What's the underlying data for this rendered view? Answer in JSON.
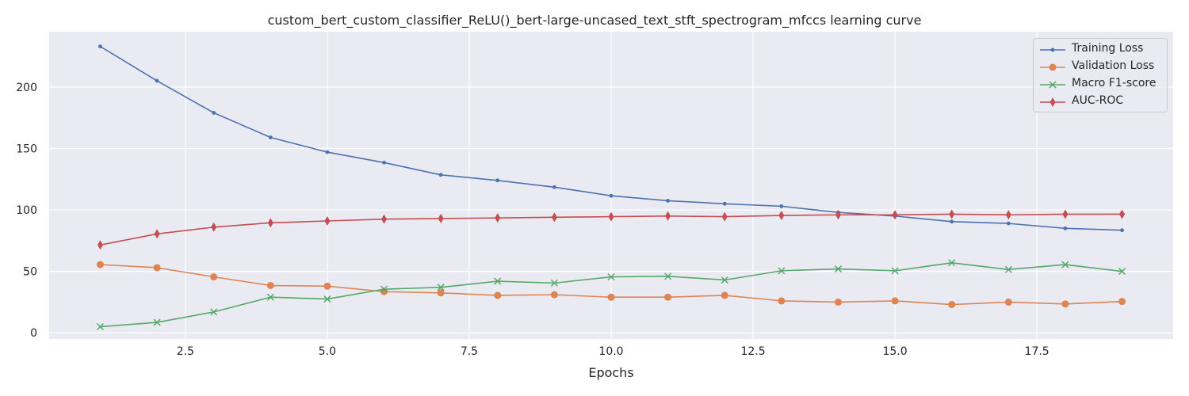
{
  "chart_data": {
    "type": "line",
    "title": "custom_bert_custom_classifier_ReLU()_bert-large-uncased_text_stft_spectrogram_mfccs learning curve",
    "xlabel": "Epochs",
    "ylabel": "",
    "xlim": [
      0.1,
      19.9
    ],
    "ylim": [
      -5,
      245
    ],
    "x_ticks": [
      2.5,
      5.0,
      7.5,
      10.0,
      12.5,
      15.0,
      17.5
    ],
    "x_tick_labels": [
      "2.5",
      "5.0",
      "7.5",
      "10.0",
      "12.5",
      "15.0",
      "17.5"
    ],
    "y_ticks": [
      0,
      50,
      100,
      150,
      200
    ],
    "y_tick_labels": [
      "0",
      "50",
      "100",
      "150",
      "200"
    ],
    "grid": true,
    "legend_position": "top-right",
    "x": [
      1,
      2,
      3,
      4,
      5,
      6,
      7,
      8,
      9,
      10,
      11,
      12,
      13,
      14,
      15,
      16,
      17,
      18,
      19
    ],
    "series": [
      {
        "name": "Training Loss",
        "color": "#4c72b0",
        "marker": "point",
        "values": [
          233,
          205,
          179,
          159,
          147,
          138.5,
          128.5,
          124,
          118.5,
          111.5,
          107.5,
          105,
          103,
          98,
          95,
          90.5,
          89,
          85,
          83.5
        ]
      },
      {
        "name": "Validation Loss",
        "color": "#dd8452",
        "marker": "circle",
        "values": [
          55.5,
          53,
          45.5,
          38.5,
          38,
          33.5,
          32.5,
          30.5,
          31,
          29,
          29,
          30.5,
          26,
          25,
          26,
          23,
          25,
          23.5,
          25.5
        ]
      },
      {
        "name": "Macro F1-score",
        "color": "#55a868",
        "marker": "x",
        "values": [
          5,
          8.5,
          17,
          29,
          27.5,
          35.5,
          37,
          42,
          40.5,
          45.5,
          46,
          43,
          50.5,
          52,
          50.5,
          57,
          51.5,
          55.5,
          50
        ]
      },
      {
        "name": "AUC-ROC",
        "color": "#c44e52",
        "marker": "diamond",
        "values": [
          71.5,
          80.5,
          86,
          89.5,
          91,
          92.5,
          93,
          93.5,
          94,
          94.5,
          95,
          94.5,
          95.5,
          96,
          96,
          96.5,
          96,
          96.5,
          96.5
        ]
      }
    ]
  }
}
